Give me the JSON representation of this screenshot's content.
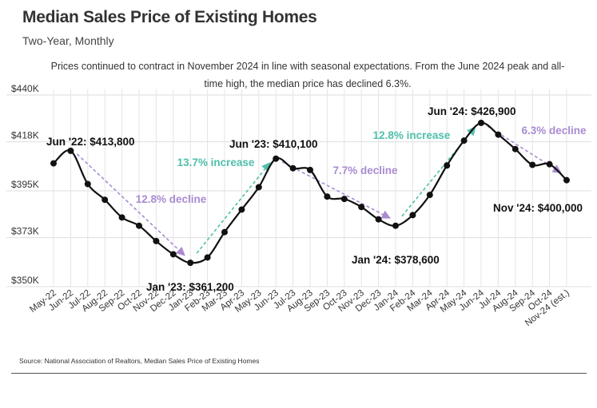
{
  "chart_data": {
    "type": "line",
    "title": "Median Sales Price of Existing Homes",
    "subtitle": "Two-Year, Monthly",
    "description": "Prices continued to contract in November 2024 in line with seasonal expectations. From the June 2024 peak and all-time high, the median price has declined 6.3%.",
    "source": "Source:  National Association of Realtors, Median Sales Price of Existing Homes",
    "categories": [
      "May-22",
      "Jun-22",
      "Jul-22",
      "Aug-22",
      "Sep-22",
      "Oct-22",
      "Nov-22",
      "Dec-22",
      "Jan-23",
      "Feb-23",
      "Mar-23",
      "Apr-23",
      "May-23",
      "Jun-23",
      "Jul-23",
      "Aug-23",
      "Sep-23",
      "Oct-23",
      "Nov-23",
      "Dec-23",
      "Jan-24",
      "Feb-24",
      "Mar-24",
      "Apr-24",
      "May-24",
      "Jun-24",
      "Jul-24",
      "Aug-24",
      "Sep-24",
      "Oct-24",
      "Nov-24 (est.)"
    ],
    "values": [
      407900,
      413800,
      398200,
      390800,
      382500,
      378600,
      371400,
      365200,
      361200,
      363700,
      375600,
      386200,
      396700,
      410100,
      405600,
      404800,
      392300,
      391200,
      387400,
      381600,
      378600,
      383600,
      393100,
      406900,
      418600,
      426900,
      421400,
      414600,
      407200,
      407500,
      400000
    ],
    "ylim": [
      350000,
      440000
    ],
    "yticks": [
      350000,
      373000,
      395000,
      418000,
      440000
    ],
    "ytick_labels": [
      "$350K",
      "$373K",
      "$395K",
      "$418K",
      "$440K"
    ],
    "grid": true,
    "line_color": "#111111",
    "annotations": [
      {
        "text": "Jun '22: $413,800",
        "index": 1
      },
      {
        "text": "Jan '23: $361,200",
        "index": 8
      },
      {
        "text": "Jun '23: $410,100",
        "index": 13
      },
      {
        "text": "Jan '24: $378,600",
        "index": 20
      },
      {
        "text": "Jun '24: $426,900",
        "index": 25
      },
      {
        "text": "Nov '24: $400,000",
        "index": 30
      }
    ],
    "trends": [
      {
        "text": "12.8% decline",
        "from": 1,
        "to": 8,
        "color": "#a98bd1"
      },
      {
        "text": "13.7% increase",
        "from": 8,
        "to": 13,
        "color": "#4fbfab"
      },
      {
        "text": "7.7% decline",
        "from": 13,
        "to": 20,
        "color": "#a98bd1"
      },
      {
        "text": "12.8% increase",
        "from": 20,
        "to": 25,
        "color": "#4fbfab"
      },
      {
        "text": "6.3% decline",
        "from": 25,
        "to": 30,
        "color": "#a98bd1"
      }
    ]
  }
}
